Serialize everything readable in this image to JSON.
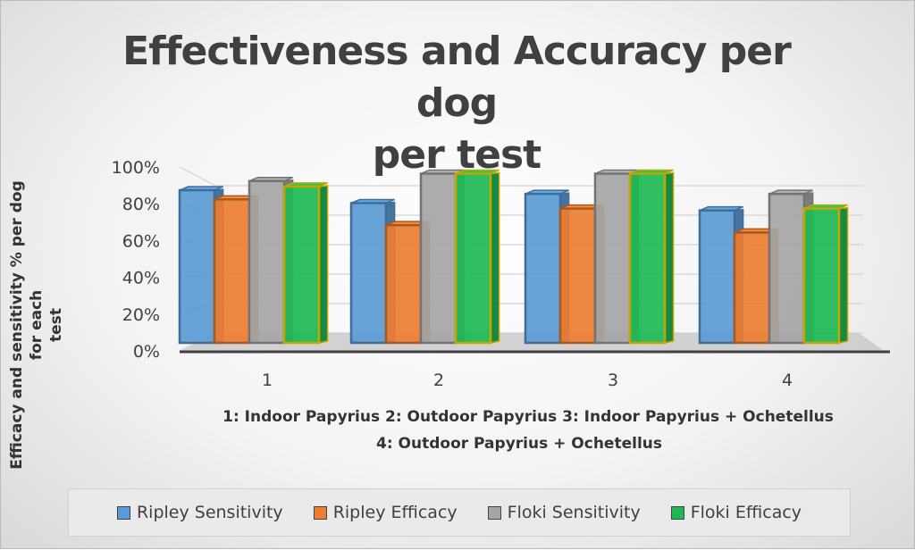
{
  "chart_data": {
    "type": "bar",
    "title": "Effectiveness and Accuracy per dog per test",
    "title_lines": [
      "Effectiveness and Accuracy per dog",
      "per test"
    ],
    "ylabel": "Efficacy and sensitivity % per dog for each test",
    "ylabel_lines": [
      "Efficacy and sensitivity % per dog for each",
      "test"
    ],
    "xlabel_lines": [
      "1: Indoor Papyrius 2: Outdoor Papyrius 3: Indoor Papyrius + Ochetellus",
      "4: Outdoor Papyrius + Ochetellus"
    ],
    "categories": [
      "1",
      "2",
      "3",
      "4"
    ],
    "yticks": [
      "0%",
      "20%",
      "40%",
      "60%",
      "80%",
      "100%"
    ],
    "ylim": [
      0,
      100
    ],
    "legend_position": "bottom",
    "series": [
      {
        "name": "Ripley Sensitivity",
        "color": "#5b9bd5",
        "values": [
          83,
          76,
          81,
          72
        ]
      },
      {
        "name": "Ripley Efficacy",
        "color": "#ed7d31",
        "values": [
          78,
          64,
          73,
          60
        ]
      },
      {
        "name": "Floki Sensitivity",
        "color": "#a5a5a5",
        "values": [
          88,
          92,
          92,
          81
        ]
      },
      {
        "name": "Floki Efficacy",
        "color": "#1db954",
        "values": [
          85,
          92,
          92,
          73
        ]
      }
    ]
  }
}
